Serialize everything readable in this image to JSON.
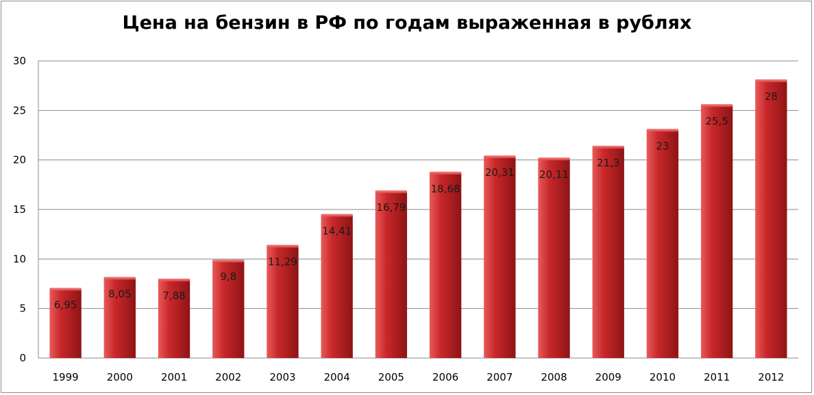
{
  "chart_data": {
    "type": "bar",
    "title": "Цена на бензин в РФ по годам выраженная в рублях",
    "xlabel": "",
    "ylabel": "",
    "categories": [
      "1999",
      "2000",
      "2001",
      "2002",
      "2003",
      "2004",
      "2005",
      "2006",
      "2007",
      "2008",
      "2009",
      "2010",
      "2011",
      "2012"
    ],
    "values": [
      6.95,
      8.05,
      7.88,
      9.8,
      11.29,
      14.41,
      16.79,
      18.68,
      20.31,
      20.11,
      21.3,
      23,
      25.5,
      28
    ],
    "data_labels": [
      "6,95",
      "8,05",
      "7,88",
      "9,8",
      "11,29",
      "14,41",
      "16,79",
      "18,68",
      "20,31",
      "20,11",
      "21,3",
      "23",
      "25,5",
      "28"
    ],
    "ylim": [
      0,
      30
    ],
    "yticks": [
      0,
      5,
      10,
      15,
      20,
      25,
      30
    ],
    "grid": true,
    "legend": "none",
    "bar_color": "#c8282a",
    "bar_highlight": "#e85a5a",
    "bar_shadow": "#8e1416",
    "grid_color": "#8a8a8a"
  }
}
